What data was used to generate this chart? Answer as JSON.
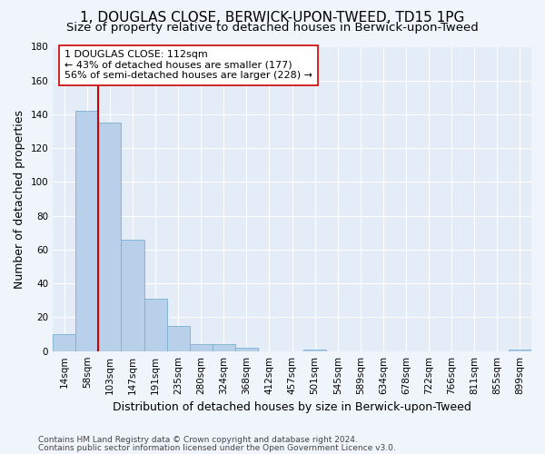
{
  "title": "1, DOUGLAS CLOSE, BERWICK-UPON-TWEED, TD15 1PG",
  "subtitle": "Size of property relative to detached houses in Berwick-upon-Tweed",
  "xlabel": "Distribution of detached houses by size in Berwick-upon-Tweed",
  "ylabel": "Number of detached properties",
  "categories": [
    "14sqm",
    "58sqm",
    "103sqm",
    "147sqm",
    "191sqm",
    "235sqm",
    "280sqm",
    "324sqm",
    "368sqm",
    "412sqm",
    "457sqm",
    "501sqm",
    "545sqm",
    "589sqm",
    "634sqm",
    "678sqm",
    "722sqm",
    "766sqm",
    "811sqm",
    "855sqm",
    "899sqm"
  ],
  "values": [
    10,
    142,
    135,
    66,
    31,
    15,
    4,
    4,
    2,
    0,
    0,
    1,
    0,
    0,
    0,
    0,
    0,
    0,
    0,
    0,
    1
  ],
  "bar_color": "#b8d0ea",
  "bar_edge_color": "#7aafd4",
  "vline_x": 2.0,
  "vline_color": "#cc0000",
  "annotation_text": "1 DOUGLAS CLOSE: 112sqm\n← 43% of detached houses are smaller (177)\n56% of semi-detached houses are larger (228) →",
  "annotation_box_color": "#ffffff",
  "annotation_box_edge": "#cc0000",
  "ylim": [
    0,
    180
  ],
  "yticks": [
    0,
    20,
    40,
    60,
    80,
    100,
    120,
    140,
    160,
    180
  ],
  "footer1": "Contains HM Land Registry data © Crown copyright and database right 2024.",
  "footer2": "Contains public sector information licensed under the Open Government Licence v3.0.",
  "bg_color": "#f0f4fb",
  "plot_bg_color": "#e4ecf7",
  "grid_color": "#ffffff",
  "title_fontsize": 11,
  "subtitle_fontsize": 9.5,
  "axis_label_fontsize": 9,
  "tick_fontsize": 7.5,
  "annotation_fontsize": 8,
  "footer_fontsize": 6.5
}
